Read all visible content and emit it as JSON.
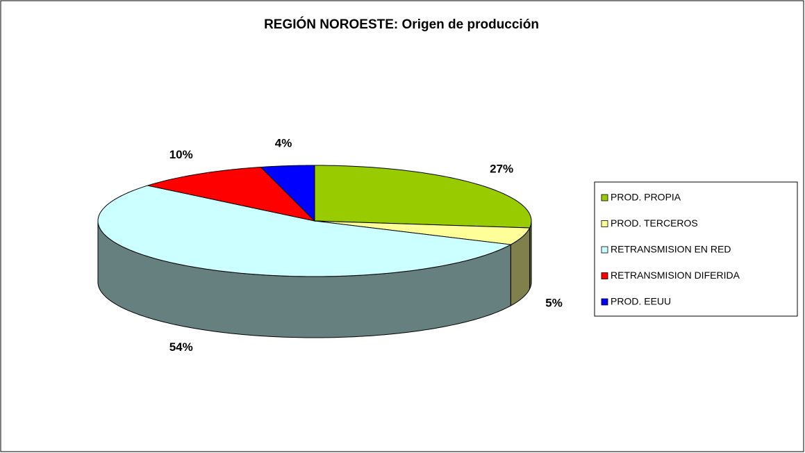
{
  "chart_data": {
    "type": "pie3d",
    "title": "REGIÓN NOROESTE: Origen de producción",
    "categories": [
      "PROD. PROPIA",
      "PROD. TERCEROS",
      "RETRANSMISION EN RED",
      "RETRANSMISION DIFERIDA",
      "PROD. EEUU"
    ],
    "values": [
      27,
      5,
      54,
      10,
      4
    ],
    "value_labels": [
      "27%",
      "5%",
      "54%",
      "10%",
      "4%"
    ],
    "colors": [
      "#99cc00",
      "#ffff99",
      "#ccffff",
      "#ff0000",
      "#0000ff"
    ],
    "legend": "right"
  }
}
